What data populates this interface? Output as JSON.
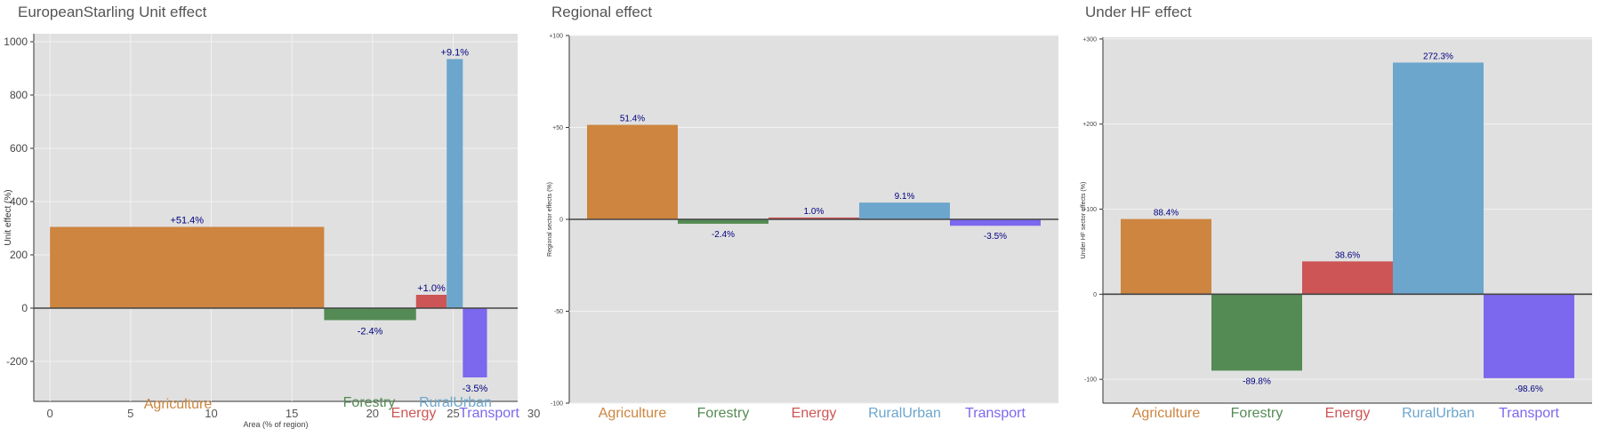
{
  "colors": {
    "agriculture": "#CD853F",
    "forestry": "#548B54",
    "energy": "#CD5555",
    "ruralurban": "#6CA6CD",
    "transport": "#7B68EE",
    "plot_background": "#e0e0e0",
    "grid": "#f2f2f2",
    "value_label": "#000080",
    "title": "#555555"
  },
  "charts": [
    {
      "title": "EuropeanStarling Unit effect",
      "chart_data": {
        "type": "bar",
        "variable_width": true,
        "xlabel": "Area (% of region)",
        "ylabel": "Unit effect (%)",
        "xlim": [
          -1,
          29
        ],
        "ylim": [
          -350,
          1030
        ],
        "xticks": [
          0,
          5,
          10,
          15,
          20,
          25,
          30
        ],
        "yticks": [
          -200,
          0,
          200,
          400,
          600,
          800,
          1000
        ],
        "ytick_labels": [
          "-200",
          "0",
          "200",
          "400",
          "600",
          "800",
          "1000"
        ],
        "grid": true,
        "bars": [
          {
            "category": "Agriculture",
            "color_key": "agriculture",
            "x0": 0,
            "x1": 17,
            "value": 305,
            "label": "+51.4%"
          },
          {
            "category": "Forestry",
            "color_key": "forestry",
            "x0": 17,
            "x1": 22.7,
            "value": -45,
            "label": "-2.4%"
          },
          {
            "category": "Energy",
            "color_key": "energy",
            "x0": 22.7,
            "x1": 24.6,
            "value": 50,
            "label": "+1.0%"
          },
          {
            "category": "RuralUrban",
            "color_key": "ruralurban",
            "x0": 24.6,
            "x1": 25.6,
            "value": 935,
            "label": "+9.1%"
          },
          {
            "category": "Transport",
            "color_key": "transport",
            "x0": 25.6,
            "x1": 27.1,
            "value": -260,
            "label": "-3.5%"
          }
        ]
      }
    },
    {
      "title": "Regional effect",
      "chart_data": {
        "type": "bar",
        "xlabel": "",
        "ylabel": "Regional sector effects (%)",
        "ylim": [
          -100,
          100
        ],
        "yticks": [
          -100,
          -50,
          0,
          50,
          100
        ],
        "ytick_labels": [
          "-100",
          "-50",
          "0",
          "+50",
          "+100"
        ],
        "grid": true,
        "categories": [
          "Agriculture",
          "Forestry",
          "Energy",
          "RuralUrban",
          "Transport"
        ],
        "color_keys": [
          "agriculture",
          "forestry",
          "energy",
          "ruralurban",
          "transport"
        ],
        "values": [
          51.4,
          -2.4,
          1.0,
          9.1,
          -3.5
        ],
        "labels": [
          "51.4%",
          "-2.4%",
          "1.0%",
          "9.1%",
          "-3.5%"
        ]
      }
    },
    {
      "title": "Under HF effect",
      "chart_data": {
        "type": "bar",
        "xlabel": "",
        "ylabel": "Under HF sector effects (%)",
        "ylim": [
          -128,
          302
        ],
        "yticks": [
          -100,
          0,
          100,
          200,
          300
        ],
        "ytick_labels": [
          "-100",
          "0",
          "+100",
          "+200",
          "+300"
        ],
        "grid": true,
        "categories": [
          "Agriculture",
          "Forestry",
          "Energy",
          "RuralUrban",
          "Transport"
        ],
        "color_keys": [
          "agriculture",
          "forestry",
          "energy",
          "ruralurban",
          "transport"
        ],
        "values": [
          88.4,
          -89.8,
          38.6,
          272.3,
          -98.6
        ],
        "labels": [
          "88.4%",
          "-89.8%",
          "38.6%",
          "272.3%",
          "-98.6%"
        ]
      }
    }
  ]
}
